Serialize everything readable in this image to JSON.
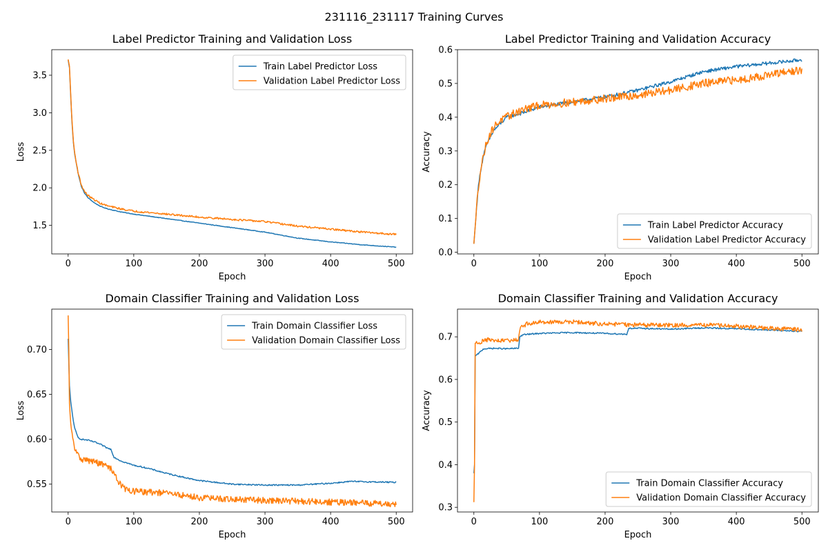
{
  "figure_title": "231116_231117 Training Curves",
  "colors": {
    "train": "#1f77b4",
    "validation": "#ff7f0e"
  },
  "chart_data": [
    {
      "type": "line",
      "title": "Label Predictor Training and Validation Loss",
      "xlabel": "Epoch",
      "ylabel": "Loss",
      "xlim": [
        -25,
        525
      ],
      "ylim": [
        1.12,
        3.84
      ],
      "xticks": [
        0,
        100,
        200,
        300,
        400,
        500
      ],
      "yticks": [
        1.5,
        2.0,
        2.5,
        3.0,
        3.5
      ],
      "ytick_decimals": 1,
      "legend": "top-right",
      "grid": false,
      "series": [
        {
          "name": "Train Label Predictor Loss",
          "color": "#1f77b4",
          "points": [
            [
              0,
              3.7
            ],
            [
              2,
              3.6
            ],
            [
              4,
              3.2
            ],
            [
              6,
              2.85
            ],
            [
              8,
              2.6
            ],
            [
              10,
              2.45
            ],
            [
              15,
              2.2
            ],
            [
              20,
              2.02
            ],
            [
              25,
              1.93
            ],
            [
              30,
              1.87
            ],
            [
              40,
              1.8
            ],
            [
              50,
              1.75
            ],
            [
              60,
              1.72
            ],
            [
              80,
              1.68
            ],
            [
              100,
              1.65
            ],
            [
              150,
              1.59
            ],
            [
              200,
              1.53
            ],
            [
              250,
              1.47
            ],
            [
              300,
              1.41
            ],
            [
              350,
              1.33
            ],
            [
              400,
              1.28
            ],
            [
              450,
              1.24
            ],
            [
              500,
              1.21
            ]
          ],
          "noise": 0.004
        },
        {
          "name": "Validation Label Predictor Loss",
          "color": "#ff7f0e",
          "points": [
            [
              0,
              3.71
            ],
            [
              2,
              3.62
            ],
            [
              4,
              3.22
            ],
            [
              6,
              2.87
            ],
            [
              8,
              2.62
            ],
            [
              10,
              2.46
            ],
            [
              15,
              2.21
            ],
            [
              20,
              2.04
            ],
            [
              25,
              1.95
            ],
            [
              30,
              1.9
            ],
            [
              40,
              1.84
            ],
            [
              50,
              1.79
            ],
            [
              60,
              1.76
            ],
            [
              80,
              1.72
            ],
            [
              100,
              1.69
            ],
            [
              150,
              1.65
            ],
            [
              200,
              1.61
            ],
            [
              250,
              1.58
            ],
            [
              300,
              1.55
            ],
            [
              350,
              1.49
            ],
            [
              400,
              1.45
            ],
            [
              450,
              1.41
            ],
            [
              500,
              1.38
            ]
          ],
          "noise": 0.012
        }
      ]
    },
    {
      "type": "line",
      "title": "Label Predictor Training and Validation Accuracy",
      "xlabel": "Epoch",
      "ylabel": "Accuracy",
      "xlim": [
        -25,
        525
      ],
      "ylim": [
        -0.005,
        0.6
      ],
      "xticks": [
        0,
        100,
        200,
        300,
        400,
        500
      ],
      "yticks": [
        0.0,
        0.1,
        0.2,
        0.3,
        0.4,
        0.5,
        0.6
      ],
      "ytick_decimals": 1,
      "legend": "bottom-right",
      "grid": false,
      "series": [
        {
          "name": "Train Label Predictor Accuracy",
          "color": "#1f77b4",
          "points": [
            [
              0,
              0.025
            ],
            [
              3,
              0.1
            ],
            [
              6,
              0.18
            ],
            [
              10,
              0.24
            ],
            [
              15,
              0.29
            ],
            [
              20,
              0.32
            ],
            [
              30,
              0.36
            ],
            [
              40,
              0.38
            ],
            [
              50,
              0.4
            ],
            [
              70,
              0.41
            ],
            [
              100,
              0.43
            ],
            [
              150,
              0.445
            ],
            [
              200,
              0.46
            ],
            [
              250,
              0.48
            ],
            [
              300,
              0.505
            ],
            [
              350,
              0.535
            ],
            [
              400,
              0.55
            ],
            [
              450,
              0.56
            ],
            [
              500,
              0.57
            ]
          ],
          "noise": 0.005
        },
        {
          "name": "Validation Label Predictor Accuracy",
          "color": "#ff7f0e",
          "points": [
            [
              0,
              0.025
            ],
            [
              3,
              0.1
            ],
            [
              6,
              0.18
            ],
            [
              10,
              0.24
            ],
            [
              15,
              0.29
            ],
            [
              20,
              0.33
            ],
            [
              30,
              0.37
            ],
            [
              40,
              0.39
            ],
            [
              50,
              0.4
            ],
            [
              70,
              0.42
            ],
            [
              100,
              0.435
            ],
            [
              150,
              0.445
            ],
            [
              200,
              0.455
            ],
            [
              250,
              0.465
            ],
            [
              300,
              0.48
            ],
            [
              350,
              0.5
            ],
            [
              400,
              0.51
            ],
            [
              450,
              0.525
            ],
            [
              500,
              0.54
            ]
          ],
          "noise": 0.012
        }
      ]
    },
    {
      "type": "line",
      "title": "Domain Classifier Training and Validation Loss",
      "xlabel": "Epoch",
      "ylabel": "Loss",
      "xlim": [
        -25,
        525
      ],
      "ylim": [
        0.519,
        0.745
      ],
      "xticks": [
        0,
        100,
        200,
        300,
        400,
        500
      ],
      "yticks": [
        0.55,
        0.6,
        0.65,
        0.7
      ],
      "ytick_decimals": 2,
      "legend": "top-right",
      "grid": false,
      "series": [
        {
          "name": "Train Domain Classifier Loss",
          "color": "#1f77b4",
          "points": [
            [
              0,
              0.712
            ],
            [
              2,
              0.66
            ],
            [
              4,
              0.641
            ],
            [
              7,
              0.625
            ],
            [
              10,
              0.612
            ],
            [
              15,
              0.602
            ],
            [
              20,
              0.6
            ],
            [
              30,
              0.599
            ],
            [
              40,
              0.597
            ],
            [
              50,
              0.594
            ],
            [
              60,
              0.59
            ],
            [
              65,
              0.589
            ],
            [
              70,
              0.58
            ],
            [
              80,
              0.576
            ],
            [
              100,
              0.571
            ],
            [
              120,
              0.568
            ],
            [
              150,
              0.562
            ],
            [
              180,
              0.557
            ],
            [
              200,
              0.554
            ],
            [
              250,
              0.55
            ],
            [
              300,
              0.549
            ],
            [
              350,
              0.549
            ],
            [
              400,
              0.551
            ],
            [
              430,
              0.553
            ],
            [
              500,
              0.552
            ]
          ],
          "noise": 0.0007
        },
        {
          "name": "Validation Domain Classifier Loss",
          "color": "#ff7f0e",
          "points": [
            [
              0,
              0.738
            ],
            [
              1,
              0.7
            ],
            [
              2,
              0.64
            ],
            [
              4,
              0.615
            ],
            [
              7,
              0.6
            ],
            [
              10,
              0.59
            ],
            [
              15,
              0.582
            ],
            [
              20,
              0.578
            ],
            [
              40,
              0.575
            ],
            [
              60,
              0.57
            ],
            [
              68,
              0.565
            ],
            [
              75,
              0.555
            ],
            [
              85,
              0.545
            ],
            [
              100,
              0.542
            ],
            [
              150,
              0.54
            ],
            [
              200,
              0.535
            ],
            [
              250,
              0.533
            ],
            [
              300,
              0.532
            ],
            [
              400,
              0.53
            ],
            [
              500,
              0.528
            ]
          ],
          "noise": 0.0035
        }
      ]
    },
    {
      "type": "line",
      "title": "Domain Classifier Training and Validation Accuracy",
      "xlabel": "Epoch",
      "ylabel": "Accuracy",
      "xlim": [
        -25,
        525
      ],
      "ylim": [
        0.289,
        0.765
      ],
      "xticks": [
        0,
        100,
        200,
        300,
        400,
        500
      ],
      "yticks": [
        0.3,
        0.4,
        0.5,
        0.6,
        0.7
      ],
      "ytick_decimals": 1,
      "legend": "bottom-right",
      "grid": false,
      "series": [
        {
          "name": "Train Domain Classifier Accuracy",
          "color": "#1f77b4",
          "points": [
            [
              0,
              0.38
            ],
            [
              1,
              0.4
            ],
            [
              2,
              0.655
            ],
            [
              5,
              0.658
            ],
            [
              10,
              0.665
            ],
            [
              15,
              0.672
            ],
            [
              30,
              0.673
            ],
            [
              50,
              0.672
            ],
            [
              68,
              0.673
            ],
            [
              70,
              0.7
            ],
            [
              75,
              0.705
            ],
            [
              100,
              0.708
            ],
            [
              150,
              0.71
            ],
            [
              200,
              0.708
            ],
            [
              233,
              0.706
            ],
            [
              236,
              0.72
            ],
            [
              250,
              0.72
            ],
            [
              300,
              0.718
            ],
            [
              350,
              0.721
            ],
            [
              400,
              0.719
            ],
            [
              450,
              0.716
            ],
            [
              500,
              0.713
            ]
          ],
          "noise": 0.0015
        },
        {
          "name": "Validation Domain Classifier Accuracy",
          "color": "#ff7f0e",
          "points": [
            [
              0,
              0.312
            ],
            [
              1,
              0.4
            ],
            [
              2,
              0.685
            ],
            [
              10,
              0.688
            ],
            [
              20,
              0.693
            ],
            [
              40,
              0.69
            ],
            [
              68,
              0.693
            ],
            [
              70,
              0.72
            ],
            [
              80,
              0.73
            ],
            [
              100,
              0.735
            ],
            [
              150,
              0.735
            ],
            [
              200,
              0.73
            ],
            [
              250,
              0.728
            ],
            [
              300,
              0.727
            ],
            [
              350,
              0.728
            ],
            [
              400,
              0.725
            ],
            [
              450,
              0.72
            ],
            [
              500,
              0.717
            ]
          ],
          "noise": 0.005
        }
      ]
    }
  ]
}
